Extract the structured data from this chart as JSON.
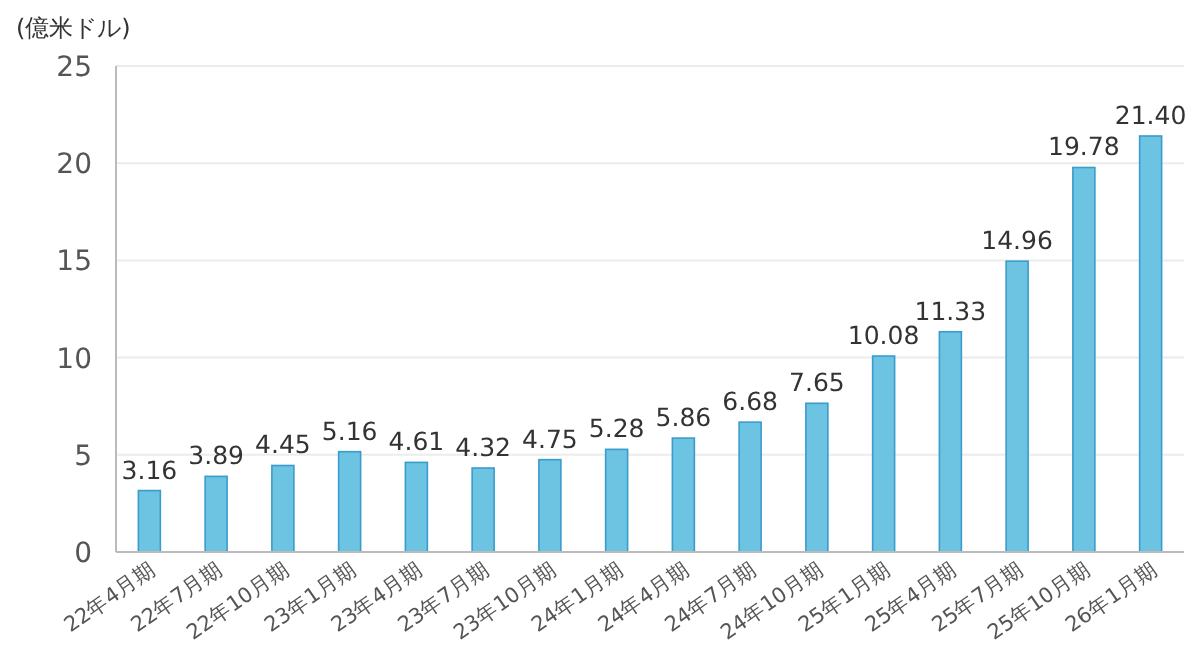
{
  "chart_data": {
    "type": "bar",
    "ylabel": "(億米ドル)",
    "categories": [
      "22年4月期",
      "22年7月期",
      "22年10月期",
      "23年1月期",
      "23年4月期",
      "23年7月期",
      "23年10月期",
      "24年1月期",
      "24年4月期",
      "24年7月期",
      "24年10月期",
      "25年1月期",
      "25年4月期",
      "25年7月期",
      "25年10月期",
      "26年1月期"
    ],
    "values": [
      3.16,
      3.89,
      4.45,
      5.16,
      4.61,
      4.32,
      4.75,
      5.28,
      5.86,
      6.68,
      7.65,
      10.08,
      11.33,
      14.96,
      19.78,
      21.4
    ],
    "value_labels": [
      "3.16",
      "3.89",
      "4.45",
      "5.16",
      "4.61",
      "4.32",
      "4.75",
      "5.28",
      "5.86",
      "6.68",
      "7.65",
      "10.08",
      "11.33",
      "14.96",
      "19.78",
      "21.40"
    ],
    "color": "#6cc3e2",
    "ylim": [
      0,
      25
    ],
    "yticks": [
      0,
      5,
      10,
      15,
      20,
      25
    ],
    "grid": "y"
  }
}
